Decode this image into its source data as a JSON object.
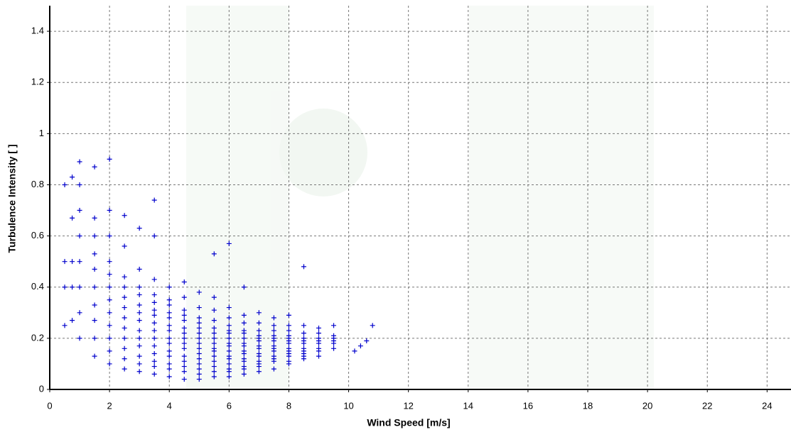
{
  "chart_data": {
    "type": "scatter",
    "xlabel": "Wind Speed [m/s]",
    "ylabel": "Turbulence Intensity [ ]",
    "xlim": [
      0,
      24.8
    ],
    "ylim": [
      0,
      1.5
    ],
    "xticks": [
      0,
      2,
      4,
      6,
      8,
      10,
      12,
      14,
      16,
      18,
      20,
      22,
      24
    ],
    "yticks": [
      0,
      0.2,
      0.4,
      0.6,
      0.8,
      1,
      1.2,
      1.4
    ],
    "grid": true,
    "color": "#0000cc",
    "x": [
      0.5,
      0.5,
      0.5,
      0.5,
      0.75,
      0.75,
      0.75,
      0.75,
      0.75,
      1,
      1,
      1,
      1,
      1,
      1,
      1,
      1,
      1.5,
      1.5,
      1.5,
      1.5,
      1.5,
      1.5,
      1.5,
      1.5,
      1.5,
      1.5,
      2,
      2,
      2,
      2,
      2,
      2,
      2,
      2,
      2,
      2,
      2,
      2,
      2.5,
      2.5,
      2.5,
      2.5,
      2.5,
      2.5,
      2.5,
      2.5,
      2.5,
      2.5,
      2.5,
      2.5,
      3,
      3,
      3,
      3,
      3,
      3,
      3,
      3,
      3,
      3,
      3,
      3,
      3,
      3.5,
      3.5,
      3.5,
      3.5,
      3.5,
      3.5,
      3.5,
      3.5,
      3.5,
      3.5,
      3.5,
      3.5,
      3.5,
      3.5,
      3.5,
      4,
      4,
      4,
      4,
      4,
      4,
      4,
      4,
      4,
      4,
      4,
      4,
      4,
      4,
      4.5,
      4.5,
      4.5,
      4.5,
      4.5,
      4.5,
      4.5,
      4.5,
      4.5,
      4.5,
      4.5,
      4.5,
      4.5,
      4.5,
      4.5,
      5,
      5,
      5,
      5,
      5,
      5,
      5,
      5,
      5,
      5,
      5,
      5,
      5,
      5,
      5,
      5.5,
      5.5,
      5.5,
      5.5,
      5.5,
      5.5,
      5.5,
      5.5,
      5.5,
      5.5,
      5.5,
      5.5,
      5.5,
      5.5,
      5.5,
      6,
      6,
      6,
      6,
      6,
      6,
      6,
      6,
      6,
      6,
      6,
      6,
      6,
      6,
      6,
      6,
      6.5,
      6.5,
      6.5,
      6.5,
      6.5,
      6.5,
      6.5,
      6.5,
      6.5,
      6.5,
      6.5,
      6.5,
      6.5,
      6.5,
      6.5,
      7,
      7,
      7,
      7,
      7,
      7,
      7,
      7,
      7,
      7,
      7,
      7,
      7,
      7,
      7.5,
      7.5,
      7.5,
      7.5,
      7.5,
      7.5,
      7.5,
      7.5,
      7.5,
      7.5,
      7.5,
      7.5,
      7.5,
      8,
      8,
      8,
      8,
      8,
      8,
      8,
      8,
      8,
      8,
      8,
      8,
      8,
      8.5,
      8.5,
      8.5,
      8.5,
      8.5,
      8.5,
      8.5,
      8.5,
      8.5,
      8.5,
      8.5,
      9,
      9,
      9,
      9,
      9,
      9,
      9,
      9,
      9.5,
      9.5,
      9.5,
      9.5,
      9.5,
      9.5,
      10.2,
      10.4,
      10.6,
      10.8
    ],
    "values": [
      0.25,
      0.4,
      0.5,
      0.8,
      0.27,
      0.4,
      0.5,
      0.67,
      0.83,
      0.2,
      0.3,
      0.4,
      0.5,
      0.6,
      0.7,
      0.8,
      0.89,
      0.13,
      0.2,
      0.27,
      0.33,
      0.4,
      0.47,
      0.53,
      0.6,
      0.67,
      0.87,
      0.1,
      0.15,
      0.2,
      0.25,
      0.3,
      0.35,
      0.4,
      0.45,
      0.5,
      0.6,
      0.7,
      0.9,
      0.08,
      0.12,
      0.16,
      0.2,
      0.24,
      0.28,
      0.32,
      0.36,
      0.4,
      0.44,
      0.56,
      0.68,
      0.07,
      0.1,
      0.13,
      0.17,
      0.2,
      0.23,
      0.27,
      0.3,
      0.33,
      0.37,
      0.4,
      0.47,
      0.63,
      0.06,
      0.09,
      0.11,
      0.14,
      0.17,
      0.2,
      0.23,
      0.26,
      0.29,
      0.31,
      0.34,
      0.37,
      0.43,
      0.6,
      0.74,
      0.05,
      0.08,
      0.1,
      0.13,
      0.15,
      0.18,
      0.2,
      0.23,
      0.25,
      0.28,
      0.3,
      0.33,
      0.35,
      0.4,
      0.04,
      0.07,
      0.09,
      0.11,
      0.13,
      0.16,
      0.18,
      0.2,
      0.22,
      0.24,
      0.27,
      0.29,
      0.31,
      0.36,
      0.42,
      0.04,
      0.06,
      0.08,
      0.1,
      0.12,
      0.14,
      0.16,
      0.18,
      0.2,
      0.22,
      0.24,
      0.26,
      0.28,
      0.32,
      0.38,
      0.05,
      0.07,
      0.09,
      0.11,
      0.13,
      0.15,
      0.16,
      0.18,
      0.2,
      0.22,
      0.24,
      0.27,
      0.31,
      0.36,
      0.53,
      0.05,
      0.07,
      0.08,
      0.1,
      0.12,
      0.13,
      0.15,
      0.17,
      0.18,
      0.2,
      0.22,
      0.23,
      0.25,
      0.28,
      0.32,
      0.57,
      0.06,
      0.08,
      0.09,
      0.11,
      0.12,
      0.14,
      0.15,
      0.17,
      0.18,
      0.2,
      0.22,
      0.23,
      0.26,
      0.29,
      0.4,
      0.07,
      0.09,
      0.1,
      0.11,
      0.13,
      0.14,
      0.16,
      0.17,
      0.19,
      0.2,
      0.21,
      0.23,
      0.26,
      0.3,
      0.08,
      0.11,
      0.12,
      0.13,
      0.15,
      0.16,
      0.17,
      0.19,
      0.2,
      0.21,
      0.23,
      0.25,
      0.28,
      0.1,
      0.11,
      0.13,
      0.14,
      0.15,
      0.16,
      0.18,
      0.19,
      0.2,
      0.21,
      0.23,
      0.25,
      0.29,
      0.12,
      0.13,
      0.14,
      0.15,
      0.16,
      0.18,
      0.19,
      0.2,
      0.22,
      0.25,
      0.48,
      0.13,
      0.15,
      0.16,
      0.18,
      0.19,
      0.2,
      0.22,
      0.24,
      0.16,
      0.18,
      0.19,
      0.2,
      0.21,
      0.25,
      0.15,
      0.17,
      0.19,
      0.25
    ]
  }
}
